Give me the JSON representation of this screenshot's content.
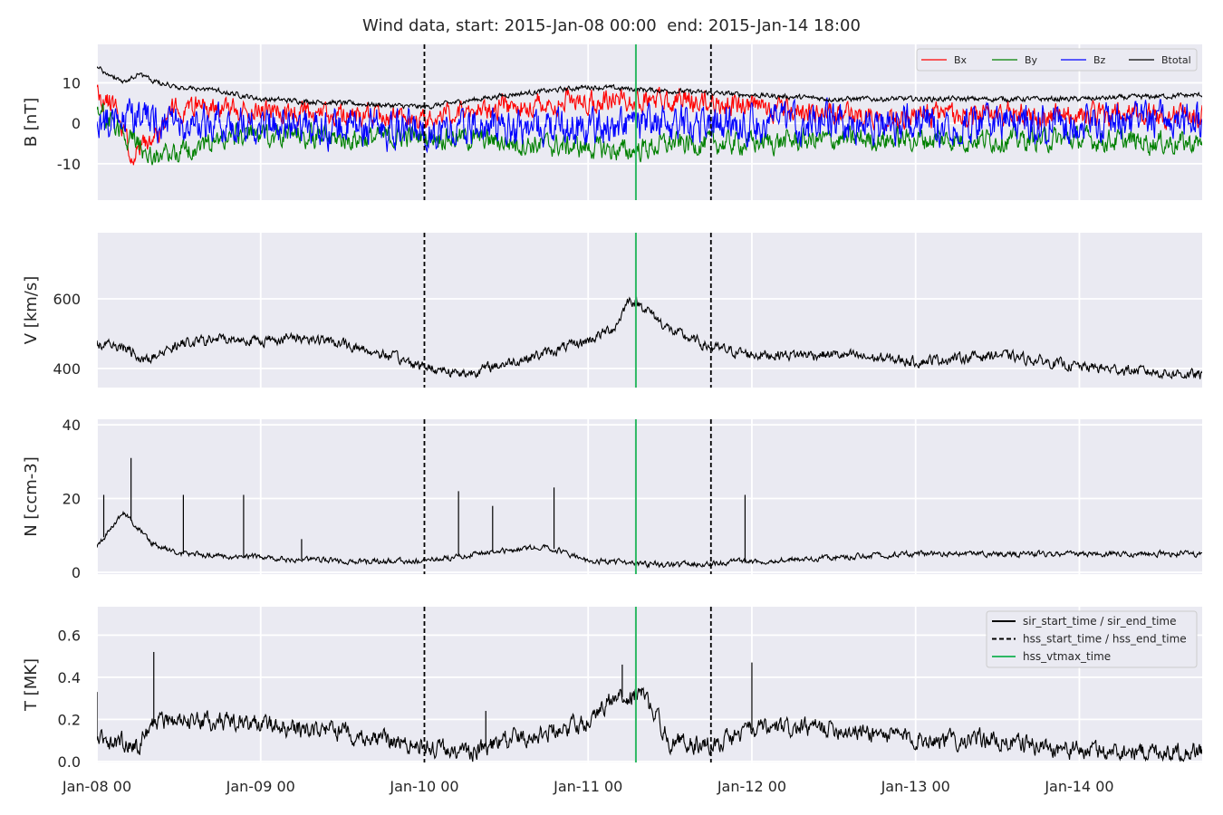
{
  "chart_data": {
    "type": "line",
    "title": "Wind data, start: 2015-Jan-08 00:00  end: 2015-Jan-14 18:00",
    "x_range": [
      "2015-01-08 00:00",
      "2015-01-14 18:00"
    ],
    "x_ticks": [
      {
        "date": "2015-01-08 00:00",
        "label": "Jan-08 00"
      },
      {
        "date": "2015-01-09 00:00",
        "label": "Jan-09 00"
      },
      {
        "date": "2015-01-10 00:00",
        "label": "Jan-10 00"
      },
      {
        "date": "2015-01-11 00:00",
        "label": "Jan-11 00"
      },
      {
        "date": "2015-01-12 00:00",
        "label": "Jan-12 00"
      },
      {
        "date": "2015-01-13 00:00",
        "label": "Jan-13 00"
      },
      {
        "date": "2015-01-14 00:00",
        "label": "Jan-14 00"
      }
    ],
    "grid": true,
    "markers": [
      {
        "name": "hss_start_time",
        "date": "2015-01-10 00:00",
        "style": "dashed",
        "color": "#000000"
      },
      {
        "name": "hss_vtmax_time",
        "date": "2015-01-11 07:00",
        "style": "solid",
        "color": "#2eb864"
      },
      {
        "name": "hss_end_time",
        "date": "2015-01-11 18:00",
        "style": "dashed",
        "color": "#000000"
      }
    ],
    "legend_markers": {
      "location": "upper right of T panel",
      "entries": [
        {
          "label": "sir_start_time / sir_end_time",
          "style": "solid",
          "color": "#000000"
        },
        {
          "label": "hss_start_time / hss_end_time",
          "style": "dashed",
          "color": "#000000"
        },
        {
          "label": "hss_vtmax_time",
          "style": "solid",
          "color": "#2eb864"
        }
      ]
    },
    "panels": [
      {
        "name": "B",
        "ylabel": "B [nT]",
        "ylim": [
          -19,
          19.5
        ],
        "yticks": [
          -10,
          0,
          10
        ],
        "legend": {
          "location": "upper right",
          "columns": 4
        },
        "series": [
          {
            "name": "Bx",
            "color": "#ff0000",
            "noise": 2.2,
            "seed": 11,
            "points": [
              [
                "2015-01-08 00:00",
                7
              ],
              [
                "2015-01-08 03:00",
                4
              ],
              [
                "2015-01-08 05:00",
                -8
              ],
              [
                "2015-01-08 07:00",
                -6
              ],
              [
                "2015-01-08 09:00",
                -2
              ],
              [
                "2015-01-08 11:00",
                4
              ],
              [
                "2015-01-08 16:00",
                4
              ],
              [
                "2015-01-09 00:00",
                3
              ],
              [
                "2015-01-09 12:00",
                2
              ],
              [
                "2015-01-10 00:00",
                1
              ],
              [
                "2015-01-10 06:00",
                3
              ],
              [
                "2015-01-10 18:00",
                5
              ],
              [
                "2015-01-11 00:00",
                6
              ],
              [
                "2015-01-11 12:00",
                6
              ],
              [
                "2015-01-12 00:00",
                4
              ],
              [
                "2015-01-12 12:00",
                2
              ],
              [
                "2015-01-13 00:00",
                2
              ],
              [
                "2015-01-13 12:00",
                2
              ],
              [
                "2015-01-14 00:00",
                2
              ],
              [
                "2015-01-14 18:00",
                2
              ]
            ]
          },
          {
            "name": "By",
            "color": "#008000",
            "noise": 2.2,
            "seed": 23,
            "points": [
              [
                "2015-01-08 00:00",
                4
              ],
              [
                "2015-01-08 04:00",
                -3
              ],
              [
                "2015-01-08 08:00",
                -8
              ],
              [
                "2015-01-08 12:00",
                -7
              ],
              [
                "2015-01-08 20:00",
                -3
              ],
              [
                "2015-01-09 06:00",
                -3
              ],
              [
                "2015-01-09 12:00",
                -4
              ],
              [
                "2015-01-10 00:00",
                -3
              ],
              [
                "2015-01-10 08:00",
                -4
              ],
              [
                "2015-01-10 14:00",
                -5
              ],
              [
                "2015-01-11 00:00",
                -6
              ],
              [
                "2015-01-11 06:00",
                -7
              ],
              [
                "2015-01-11 12:00",
                -5
              ],
              [
                "2015-01-11 20:00",
                -5
              ],
              [
                "2015-01-12 12:00",
                -4
              ],
              [
                "2015-01-13 00:00",
                -4
              ],
              [
                "2015-01-13 12:00",
                -4
              ],
              [
                "2015-01-14 00:00",
                -4
              ],
              [
                "2015-01-14 18:00",
                -5
              ]
            ]
          },
          {
            "name": "Bz",
            "color": "#0000ff",
            "noise": 3.6,
            "seed": 37,
            "points": [
              [
                "2015-01-08 00:00",
                -1
              ],
              [
                "2015-01-08 06:00",
                1
              ],
              [
                "2015-01-08 12:00",
                -1
              ],
              [
                "2015-01-09 00:00",
                0
              ],
              [
                "2015-01-09 12:00",
                -1
              ],
              [
                "2015-01-10 00:00",
                -2
              ],
              [
                "2015-01-10 12:00",
                -1
              ],
              [
                "2015-01-11 00:00",
                -1
              ],
              [
                "2015-01-11 12:00",
                0
              ],
              [
                "2015-01-12 00:00",
                0
              ],
              [
                "2015-01-13 00:00",
                0
              ],
              [
                "2015-01-14 00:00",
                0
              ],
              [
                "2015-01-14 18:00",
                1
              ]
            ]
          },
          {
            "name": "Btotal",
            "color": "#000000",
            "noise": 0.5,
            "seed": 41,
            "points": [
              [
                "2015-01-08 00:00",
                14
              ],
              [
                "2015-01-08 02:00",
                12
              ],
              [
                "2015-01-08 04:00",
                10
              ],
              [
                "2015-01-08 06:00",
                12
              ],
              [
                "2015-01-08 09:00",
                10
              ],
              [
                "2015-01-08 12:00",
                9
              ],
              [
                "2015-01-08 18:00",
                8
              ],
              [
                "2015-01-09 00:00",
                6
              ],
              [
                "2015-01-09 12:00",
                5
              ],
              [
                "2015-01-10 00:00",
                4
              ],
              [
                "2015-01-10 12:00",
                7
              ],
              [
                "2015-01-11 00:00",
                9
              ],
              [
                "2015-01-11 12:00",
                8
              ],
              [
                "2015-01-12 00:00",
                7
              ],
              [
                "2015-01-12 12:00",
                6
              ],
              [
                "2015-01-13 00:00",
                6
              ],
              [
                "2015-01-14 00:00",
                6
              ],
              [
                "2015-01-14 18:00",
                7
              ]
            ]
          }
        ]
      },
      {
        "name": "V",
        "ylabel": "V [km/s]",
        "ylim": [
          345,
          790
        ],
        "yticks": [
          400,
          600
        ],
        "series": [
          {
            "name": "",
            "color": "#000000",
            "noise": 12,
            "seed": 53,
            "points": [
              [
                "2015-01-08 00:00",
                470
              ],
              [
                "2015-01-08 04:00",
                460
              ],
              [
                "2015-01-08 07:00",
                425
              ],
              [
                "2015-01-08 12:00",
                470
              ],
              [
                "2015-01-08 18:00",
                485
              ],
              [
                "2015-01-09 00:00",
                480
              ],
              [
                "2015-01-09 06:00",
                490
              ],
              [
                "2015-01-09 12:00",
                470
              ],
              [
                "2015-01-09 18:00",
                440
              ],
              [
                "2015-01-10 00:00",
                405
              ],
              [
                "2015-01-10 06:00",
                385
              ],
              [
                "2015-01-10 12:00",
                415
              ],
              [
                "2015-01-10 18:00",
                445
              ],
              [
                "2015-01-11 00:00",
                480
              ],
              [
                "2015-01-11 04:00",
                520
              ],
              [
                "2015-01-11 06:00",
                600
              ],
              [
                "2015-01-11 08:00",
                580
              ],
              [
                "2015-01-11 12:00",
                510
              ],
              [
                "2015-01-11 18:00",
                460
              ],
              [
                "2015-01-12 00:00",
                440
              ],
              [
                "2015-01-12 12:00",
                440
              ],
              [
                "2015-01-13 00:00",
                420
              ],
              [
                "2015-01-13 12:00",
                440
              ],
              [
                "2015-01-14 00:00",
                405
              ],
              [
                "2015-01-14 18:00",
                380
              ]
            ]
          }
        ]
      },
      {
        "name": "N",
        "ylabel": "N [ccm-3]",
        "ylim": [
          -0.5,
          41.5
        ],
        "yticks": [
          0,
          20,
          40
        ],
        "series": [
          {
            "name": "",
            "color": "#000000",
            "noise": 0.6,
            "seed": 67,
            "points": [
              [
                "2015-01-08 00:00",
                7
              ],
              [
                "2015-01-08 02:00",
                12
              ],
              [
                "2015-01-08 04:00",
                16
              ],
              [
                "2015-01-08 06:00",
                12
              ],
              [
                "2015-01-08 08:00",
                8
              ],
              [
                "2015-01-08 12:00",
                5
              ],
              [
                "2015-01-09 00:00",
                4
              ],
              [
                "2015-01-09 12:00",
                3
              ],
              [
                "2015-01-10 00:00",
                3
              ],
              [
                "2015-01-10 12:00",
                6
              ],
              [
                "2015-01-10 18:00",
                7
              ],
              [
                "2015-01-11 00:00",
                3
              ],
              [
                "2015-01-11 12:00",
                2
              ],
              [
                "2015-01-12 00:00",
                3
              ],
              [
                "2015-01-12 12:00",
                4
              ],
              [
                "2015-01-13 00:00",
                5
              ],
              [
                "2015-01-14 00:00",
                5
              ],
              [
                "2015-01-14 18:00",
                5
              ]
            ]
          }
        ],
        "spikes": [
          [
            "2015-01-08 05:00",
            31
          ],
          [
            "2015-01-08 12:40",
            21
          ],
          [
            "2015-01-08 21:30",
            21
          ],
          [
            "2015-01-09 06:00",
            9
          ],
          [
            "2015-01-10 05:00",
            22
          ],
          [
            "2015-01-10 10:00",
            18
          ],
          [
            "2015-01-10 19:00",
            23
          ],
          [
            "2015-01-11 23:00",
            21
          ],
          [
            "2015-01-08 01:00",
            21
          ]
        ]
      },
      {
        "name": "T",
        "ylabel": "T [MK]",
        "ylim": [
          -0.005,
          0.735
        ],
        "yticks": [
          0.0,
          0.2,
          0.4,
          0.6
        ],
        "ytick_format": 1,
        "series": [
          {
            "name": "",
            "color": "#000000",
            "noise": 0.035,
            "seed": 79,
            "points": [
              [
                "2015-01-08 00:00",
                0.1
              ],
              [
                "2015-01-08 06:00",
                0.08
              ],
              [
                "2015-01-08 08:00",
                0.18
              ],
              [
                "2015-01-08 12:00",
                0.2
              ],
              [
                "2015-01-09 00:00",
                0.18
              ],
              [
                "2015-01-09 12:00",
                0.14
              ],
              [
                "2015-01-10 00:00",
                0.07
              ],
              [
                "2015-01-10 06:00",
                0.04
              ],
              [
                "2015-01-10 12:00",
                0.1
              ],
              [
                "2015-01-10 18:00",
                0.14
              ],
              [
                "2015-01-11 00:00",
                0.2
              ],
              [
                "2015-01-11 04:00",
                0.3
              ],
              [
                "2015-01-11 08:00",
                0.32
              ],
              [
                "2015-01-11 12:00",
                0.1
              ],
              [
                "2015-01-11 18:00",
                0.08
              ],
              [
                "2015-01-12 00:00",
                0.15
              ],
              [
                "2015-01-12 12:00",
                0.16
              ],
              [
                "2015-01-13 00:00",
                0.11
              ],
              [
                "2015-01-13 12:00",
                0.1
              ],
              [
                "2015-01-14 00:00",
                0.05
              ],
              [
                "2015-01-14 18:00",
                0.05
              ]
            ]
          }
        ],
        "spikes": [
          [
            "2015-01-08 00:00",
            0.33
          ],
          [
            "2015-01-08 08:20",
            0.52
          ],
          [
            "2015-01-11 05:00",
            0.46
          ],
          [
            "2015-01-11 07:00",
            0.48
          ],
          [
            "2015-01-12 00:00",
            0.47
          ],
          [
            "2015-01-10 09:00",
            0.24
          ]
        ]
      }
    ]
  }
}
